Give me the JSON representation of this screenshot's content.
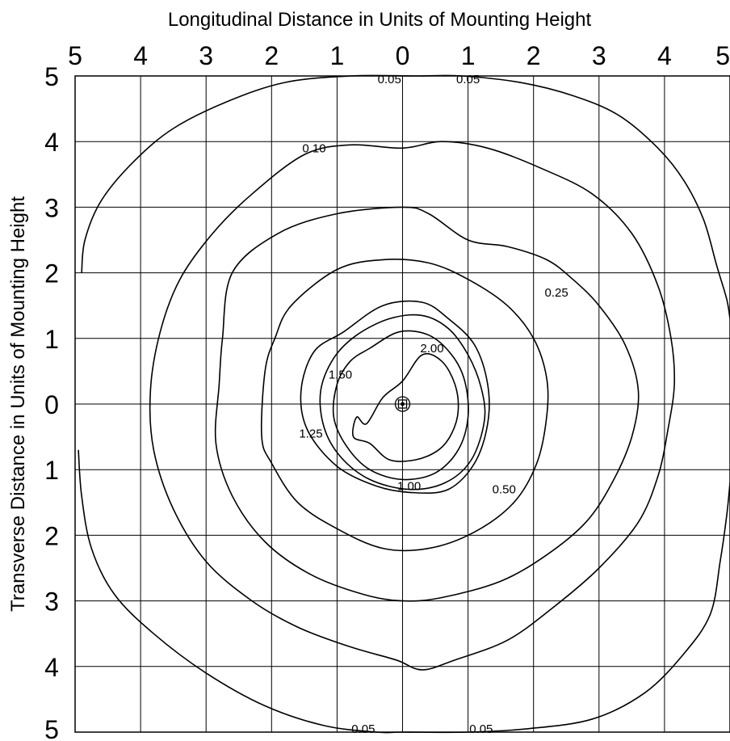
{
  "chart_data": {
    "type": "contour",
    "title": "Longitudinal Distance in Units of Mounting Height",
    "xlabel": "Longitudinal Distance in Units of Mounting Height",
    "ylabel": "Transverse Distance in Units of Mounting Height",
    "x_ticks": [
      "5",
      "4",
      "3",
      "2",
      "1",
      "0",
      "1",
      "2",
      "3",
      "4",
      "5"
    ],
    "y_ticks": [
      "5",
      "4",
      "3",
      "2",
      "1",
      "0",
      "1",
      "2",
      "3",
      "4",
      "5"
    ],
    "xlim": [
      -5,
      5
    ],
    "ylim": [
      -5,
      5
    ],
    "grid": true,
    "luminaire_position": [
      0,
      0
    ],
    "contours": [
      {
        "level": 0.05,
        "label": "0.05",
        "closed": false,
        "points": [
          [
            -4.9,
            2.0
          ],
          [
            -4.85,
            2.5
          ],
          [
            -4.6,
            3.1
          ],
          [
            -4.1,
            3.7
          ],
          [
            -3.5,
            4.2
          ],
          [
            -2.7,
            4.6
          ],
          [
            -1.8,
            4.9
          ],
          [
            -0.8,
            5.0
          ],
          [
            0.2,
            5.0
          ],
          [
            0.9,
            5.0
          ],
          [
            1.8,
            4.9
          ],
          [
            2.6,
            4.7
          ],
          [
            3.3,
            4.4
          ],
          [
            3.9,
            3.9
          ],
          [
            4.3,
            3.4
          ],
          [
            4.6,
            2.8
          ],
          [
            4.8,
            2.1
          ],
          [
            4.95,
            1.6
          ],
          [
            5.0,
            1.3
          ]
        ]
      },
      {
        "level": 0.05,
        "label": "0.05",
        "closed": false,
        "points": [
          [
            -4.95,
            -0.7
          ],
          [
            -4.9,
            -1.4
          ],
          [
            -4.75,
            -2.2
          ],
          [
            -4.4,
            -2.9
          ],
          [
            -3.8,
            -3.5
          ],
          [
            -3.0,
            -4.1
          ],
          [
            -2.1,
            -4.6
          ],
          [
            -1.2,
            -4.9
          ],
          [
            -0.4,
            -5.0
          ],
          [
            0.0,
            -5.0
          ],
          [
            1.0,
            -5.0
          ],
          [
            1.9,
            -4.95
          ],
          [
            2.9,
            -4.8
          ],
          [
            3.7,
            -4.4
          ],
          [
            4.3,
            -3.8
          ],
          [
            4.7,
            -3.2
          ],
          [
            4.85,
            -2.4
          ],
          [
            4.95,
            -1.7
          ],
          [
            5.0,
            -1.2
          ]
        ]
      },
      {
        "level": 0.1,
        "label": "0.10",
        "closed": true,
        "points": [
          [
            -1.5,
            3.8
          ],
          [
            -0.8,
            3.95
          ],
          [
            0.0,
            3.9
          ],
          [
            0.6,
            4.0
          ],
          [
            1.3,
            3.9
          ],
          [
            2.1,
            3.6
          ],
          [
            2.9,
            3.2
          ],
          [
            3.5,
            2.6
          ],
          [
            3.9,
            1.8
          ],
          [
            4.1,
            1.0
          ],
          [
            4.15,
            0.3
          ],
          [
            4.05,
            -0.4
          ],
          [
            3.9,
            -1.1
          ],
          [
            3.6,
            -1.8
          ],
          [
            3.0,
            -2.5
          ],
          [
            2.3,
            -3.1
          ],
          [
            1.6,
            -3.6
          ],
          [
            0.8,
            -3.9
          ],
          [
            0.3,
            -4.05
          ],
          [
            -0.1,
            -3.9
          ],
          [
            -0.8,
            -3.7
          ],
          [
            -1.6,
            -3.4
          ],
          [
            -2.3,
            -3.0
          ],
          [
            -3.0,
            -2.4
          ],
          [
            -3.5,
            -1.6
          ],
          [
            -3.8,
            -0.7
          ],
          [
            -3.85,
            0.2
          ],
          [
            -3.7,
            1.1
          ],
          [
            -3.4,
            1.9
          ],
          [
            -2.9,
            2.6
          ],
          [
            -2.3,
            3.2
          ],
          [
            -1.5,
            3.8
          ]
        ]
      },
      {
        "level": 0.25,
        "label": "0.25",
        "closed": true,
        "points": [
          [
            -2.6,
            2.0
          ],
          [
            -1.9,
            2.6
          ],
          [
            -1.0,
            2.9
          ],
          [
            0.0,
            3.0
          ],
          [
            0.4,
            2.9
          ],
          [
            1.0,
            2.5
          ],
          [
            1.6,
            2.4
          ],
          [
            2.2,
            2.2
          ],
          [
            2.6,
            1.9
          ],
          [
            3.0,
            1.5
          ],
          [
            3.4,
            0.9
          ],
          [
            3.6,
            0.2
          ],
          [
            3.5,
            -0.5
          ],
          [
            3.2,
            -1.2
          ],
          [
            2.8,
            -1.8
          ],
          [
            2.2,
            -2.3
          ],
          [
            1.5,
            -2.7
          ],
          [
            0.6,
            -2.95
          ],
          [
            0.0,
            -3.0
          ],
          [
            -0.6,
            -2.9
          ],
          [
            -1.4,
            -2.6
          ],
          [
            -2.1,
            -2.1
          ],
          [
            -2.6,
            -1.4
          ],
          [
            -2.85,
            -0.6
          ],
          [
            -2.8,
            0.3
          ],
          [
            -2.75,
            1.0
          ],
          [
            -2.6,
            2.0
          ]
        ]
      },
      {
        "level": 0.5,
        "label": "0.50",
        "closed": true,
        "points": [
          [
            -1.7,
            1.5
          ],
          [
            -1.0,
            2.05
          ],
          [
            -0.3,
            2.2
          ],
          [
            0.4,
            2.15
          ],
          [
            1.0,
            1.9
          ],
          [
            1.6,
            1.5
          ],
          [
            2.0,
            1.0
          ],
          [
            2.2,
            0.4
          ],
          [
            2.2,
            -0.2
          ],
          [
            2.05,
            -0.9
          ],
          [
            1.7,
            -1.5
          ],
          [
            1.1,
            -1.95
          ],
          [
            0.4,
            -2.2
          ],
          [
            -0.3,
            -2.2
          ],
          [
            -1.0,
            -1.9
          ],
          [
            -1.6,
            -1.5
          ],
          [
            -2.0,
            -0.9
          ],
          [
            -2.15,
            -0.5
          ],
          [
            -2.1,
            0.5
          ],
          [
            -1.95,
            1.0
          ],
          [
            -1.7,
            1.5
          ]
        ]
      },
      {
        "level": 1.0,
        "label": "1.00",
        "closed": true,
        "points": [
          [
            -0.9,
            1.1
          ],
          [
            -0.3,
            1.5
          ],
          [
            0.3,
            1.55
          ],
          [
            0.7,
            1.3
          ],
          [
            1.1,
            0.9
          ],
          [
            1.3,
            0.3
          ],
          [
            1.3,
            -0.3
          ],
          [
            1.1,
            -0.9
          ],
          [
            0.7,
            -1.3
          ],
          [
            0.15,
            -1.35
          ],
          [
            -0.4,
            -1.25
          ],
          [
            -1.0,
            -0.95
          ],
          [
            -1.45,
            -0.4
          ],
          [
            -1.55,
            0.2
          ],
          [
            -1.35,
            0.8
          ],
          [
            -0.9,
            1.1
          ]
        ]
      },
      {
        "level": 1.25,
        "label": "1.25",
        "closed": true,
        "points": [
          [
            -0.7,
            1.05
          ],
          [
            -0.2,
            1.3
          ],
          [
            0.3,
            1.35
          ],
          [
            0.7,
            1.15
          ],
          [
            1.0,
            0.75
          ],
          [
            1.2,
            0.25
          ],
          [
            1.25,
            -0.25
          ],
          [
            1.05,
            -0.85
          ],
          [
            0.65,
            -1.2
          ],
          [
            0.1,
            -1.3
          ],
          [
            -0.5,
            -1.15
          ],
          [
            -0.95,
            -0.8
          ],
          [
            -1.2,
            -0.35
          ],
          [
            -1.25,
            0.2
          ],
          [
            -1.05,
            0.7
          ],
          [
            -0.7,
            1.05
          ]
        ]
      },
      {
        "level": 1.5,
        "label": "1.50",
        "closed": true,
        "points": [
          [
            -0.5,
            0.85
          ],
          [
            -0.05,
            1.1
          ],
          [
            0.4,
            1.05
          ],
          [
            0.75,
            0.75
          ],
          [
            0.95,
            0.35
          ],
          [
            1.0,
            -0.2
          ],
          [
            0.85,
            -0.7
          ],
          [
            0.5,
            -1.05
          ],
          [
            0.0,
            -1.15
          ],
          [
            -0.5,
            -1.0
          ],
          [
            -0.85,
            -0.65
          ],
          [
            -1.05,
            -0.2
          ],
          [
            -1.0,
            0.3
          ],
          [
            -0.8,
            0.65
          ],
          [
            -0.5,
            0.85
          ]
        ]
      },
      {
        "level": 2.0,
        "label": "2.00",
        "closed": true,
        "points": [
          [
            -0.55,
            -0.3
          ],
          [
            -0.3,
            0.1
          ],
          [
            0.0,
            0.35
          ],
          [
            0.3,
            0.75
          ],
          [
            0.6,
            0.65
          ],
          [
            0.8,
            0.3
          ],
          [
            0.85,
            -0.1
          ],
          [
            0.75,
            -0.45
          ],
          [
            0.55,
            -0.7
          ],
          [
            0.2,
            -0.85
          ],
          [
            -0.2,
            -0.85
          ],
          [
            -0.5,
            -0.6
          ],
          [
            -0.75,
            -0.5
          ],
          [
            -0.7,
            -0.2
          ],
          [
            -0.55,
            -0.3
          ]
        ]
      }
    ],
    "contour_labels": [
      {
        "text": "0.05",
        "x": -0.2,
        "y": 4.95
      },
      {
        "text": "0.05",
        "x": 1.0,
        "y": 4.95
      },
      {
        "text": "0.10",
        "x": -1.35,
        "y": 3.9
      },
      {
        "text": "0.25",
        "x": 2.35,
        "y": 1.7
      },
      {
        "text": "0.50",
        "x": 1.55,
        "y": -1.3
      },
      {
        "text": "1.00",
        "x": 0.1,
        "y": -1.25
      },
      {
        "text": "1.25",
        "x": -1.4,
        "y": -0.45
      },
      {
        "text": "1.50",
        "x": -0.95,
        "y": 0.45
      },
      {
        "text": "2.00",
        "x": 0.45,
        "y": 0.85
      },
      {
        "text": "0.05",
        "x": -0.6,
        "y": -4.95
      },
      {
        "text": "0.05",
        "x": 1.2,
        "y": -4.95
      }
    ]
  }
}
